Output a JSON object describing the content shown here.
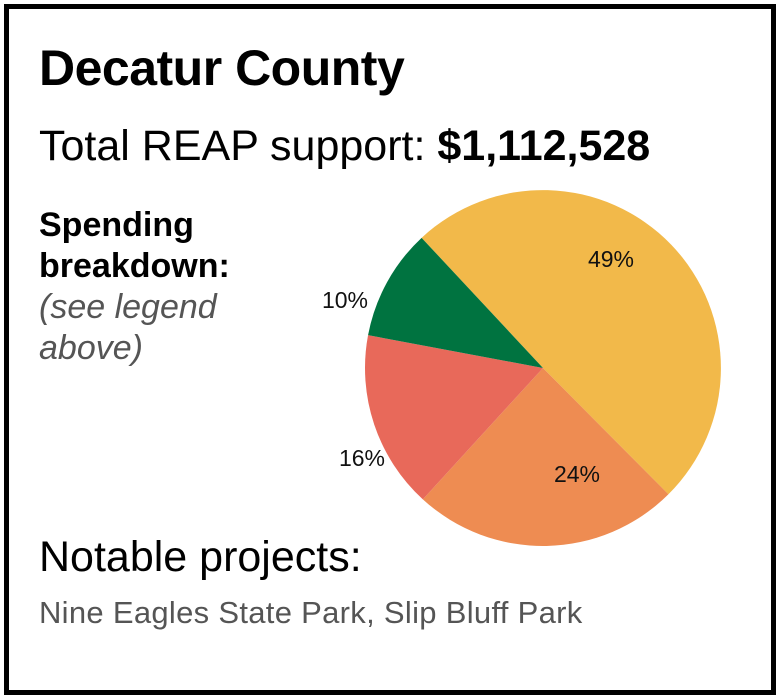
{
  "header": {
    "title": "Decatur County",
    "total_label": "Total REAP support:",
    "total_amount": "$1,112,528"
  },
  "breakdown": {
    "heading_line1": "Spending",
    "heading_line2": "breakdown:",
    "note_line1": "(see legend",
    "note_line2": "above)"
  },
  "projects": {
    "heading": "Notable projects:",
    "list": "Nine Eagles State Park, Slip Bluff Park"
  },
  "chart_data": {
    "type": "pie",
    "title": "",
    "start_angle_deg": -43,
    "direction": "clockwise",
    "slices": [
      {
        "label": "49%",
        "value": 49,
        "color": "#F2B94A"
      },
      {
        "label": "24%",
        "value": 24,
        "color": "#EE8C52"
      },
      {
        "label": "16%",
        "value": 16,
        "color": "#E8695A"
      },
      {
        "label": "10%",
        "value": 10,
        "color": "#007340"
      }
    ]
  }
}
